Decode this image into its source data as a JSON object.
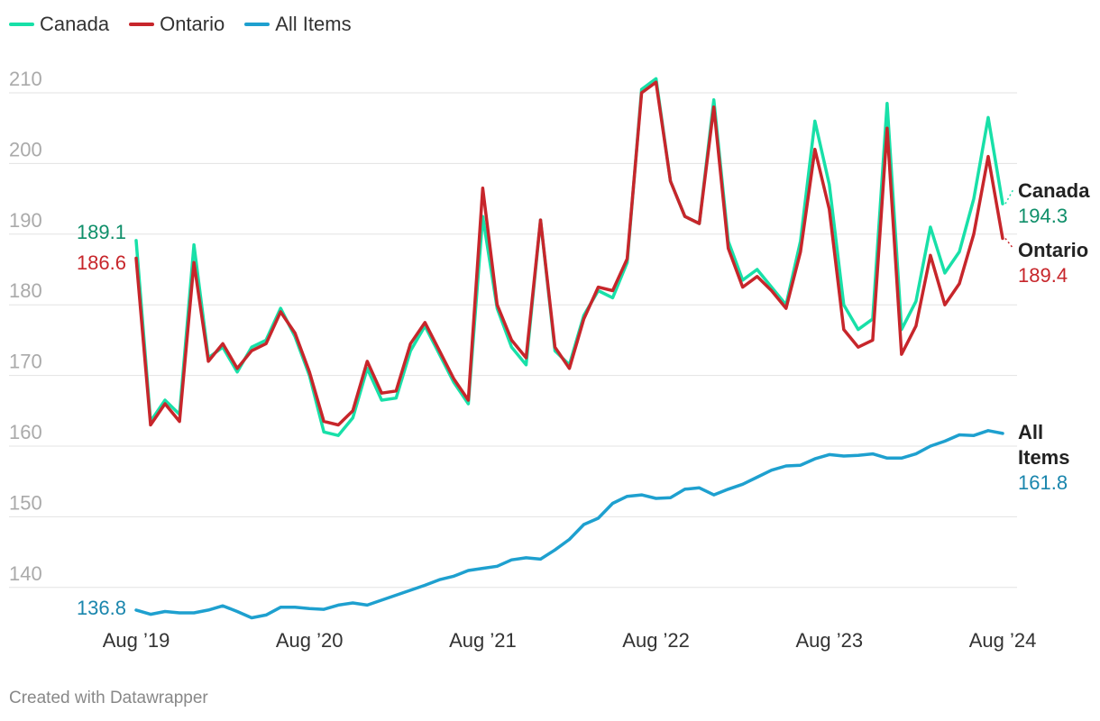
{
  "legend": [
    {
      "name": "Canada",
      "color": "#18e0a8"
    },
    {
      "name": "Ontario",
      "color": "#c7262b"
    },
    {
      "name": "All Items",
      "color": "#1ea0cf"
    }
  ],
  "footer": "Created with Datawrapper",
  "chart_data": {
    "type": "line",
    "title": "",
    "xlabel": "",
    "ylabel": "",
    "ylim": [
      134,
      213
    ],
    "y_ticks": [
      140,
      150,
      160,
      170,
      180,
      190,
      200,
      210
    ],
    "x_ticks": [
      "Aug ’19",
      "Aug ’20",
      "Aug ’21",
      "Aug ’22",
      "Aug ’23",
      "Aug ’24"
    ],
    "grid": true,
    "x_start": "2019-08",
    "x_end": "2024-08",
    "series": [
      {
        "name": "Canada",
        "color": "#18e0a8",
        "start_label": "189.1",
        "end_label": "194.3",
        "values": [
          189.1,
          163.5,
          166.5,
          164.5,
          188.5,
          172.5,
          174.0,
          170.5,
          174.0,
          175.0,
          179.5,
          175.5,
          170.0,
          162.0,
          161.5,
          164.0,
          171.0,
          166.5,
          166.8,
          173.5,
          177.0,
          173.0,
          169.0,
          166.0,
          192.5,
          179.5,
          174.0,
          171.5,
          192.0,
          173.5,
          171.5,
          178.5,
          182.0,
          181.0,
          186.0,
          210.5,
          212.0,
          197.5,
          192.5,
          191.5,
          209.0,
          189.0,
          183.5,
          185.0,
          182.5,
          180.0,
          189.0,
          206.0,
          197.0,
          180.0,
          176.5,
          178.0,
          208.5,
          176.5,
          180.5,
          191.0,
          184.5,
          187.5,
          195.0,
          206.5,
          194.3
        ]
      },
      {
        "name": "Ontario",
        "color": "#c7262b",
        "start_label": "186.6",
        "end_label": "189.4",
        "values": [
          186.6,
          163.0,
          166.0,
          163.5,
          186.0,
          172.0,
          174.5,
          171.0,
          173.5,
          174.5,
          179.0,
          176.0,
          170.5,
          163.5,
          163.0,
          165.0,
          172.0,
          167.5,
          167.8,
          174.5,
          177.5,
          173.5,
          169.5,
          166.5,
          196.5,
          180.0,
          175.0,
          172.5,
          192.0,
          174.0,
          171.0,
          178.0,
          182.5,
          182.0,
          186.5,
          210.0,
          211.5,
          197.5,
          192.5,
          191.5,
          208.0,
          188.0,
          182.5,
          184.0,
          182.0,
          179.5,
          187.5,
          202.0,
          193.5,
          176.5,
          174.0,
          175.0,
          205.0,
          173.0,
          177.0,
          187.0,
          180.0,
          183.0,
          190.0,
          201.0,
          189.4
        ]
      },
      {
        "name": "All Items",
        "color": "#1ea0cf",
        "start_label": "136.8",
        "end_label": "161.8",
        "values": [
          136.8,
          136.2,
          136.6,
          136.4,
          136.4,
          136.8,
          137.4,
          136.6,
          135.7,
          136.1,
          137.2,
          137.2,
          137.0,
          136.9,
          137.5,
          137.8,
          137.5,
          138.2,
          138.9,
          139.6,
          140.3,
          141.1,
          141.6,
          142.4,
          142.7,
          143.0,
          143.9,
          144.2,
          144.0,
          145.3,
          146.8,
          148.9,
          149.8,
          151.9,
          152.9,
          153.1,
          152.6,
          152.7,
          153.9,
          154.1,
          153.1,
          153.9,
          154.6,
          155.6,
          156.6,
          157.2,
          157.3,
          158.2,
          158.8,
          158.6,
          158.7,
          158.9,
          158.3,
          158.3,
          158.9,
          160.0,
          160.7,
          161.6,
          161.5,
          162.2,
          161.8
        ]
      }
    ]
  }
}
